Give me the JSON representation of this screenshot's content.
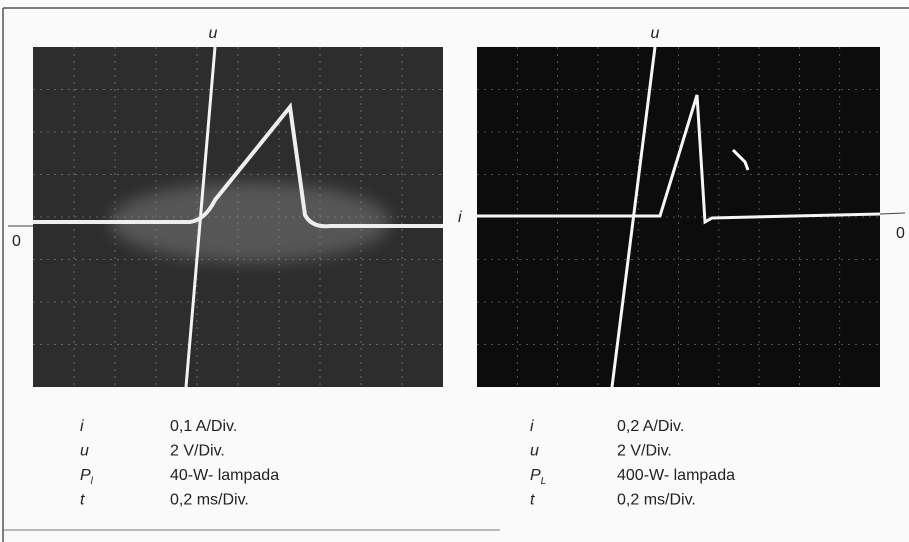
{
  "panels": [
    {
      "top_label": "u",
      "left_label": null,
      "zero_label": "0",
      "legend": [
        {
          "symbol": "i",
          "value": "0,1 A/Div."
        },
        {
          "symbol": "u",
          "value": "2 V/Div."
        },
        {
          "symbol": "P",
          "subscript": "l",
          "value": "40-W- lampada"
        },
        {
          "symbol": "t",
          "value": "0,2 ms/Div."
        }
      ]
    },
    {
      "top_label": "u",
      "left_label": "i",
      "zero_label": "0",
      "legend": [
        {
          "symbol": "i",
          "value": "0,2 A/Div."
        },
        {
          "symbol": "u",
          "value": "2 V/Div."
        },
        {
          "symbol": "P",
          "subscript": "L",
          "value": "400-W- lampada"
        },
        {
          "symbol": "t",
          "value": "0,2 ms/Div."
        }
      ]
    }
  ]
}
